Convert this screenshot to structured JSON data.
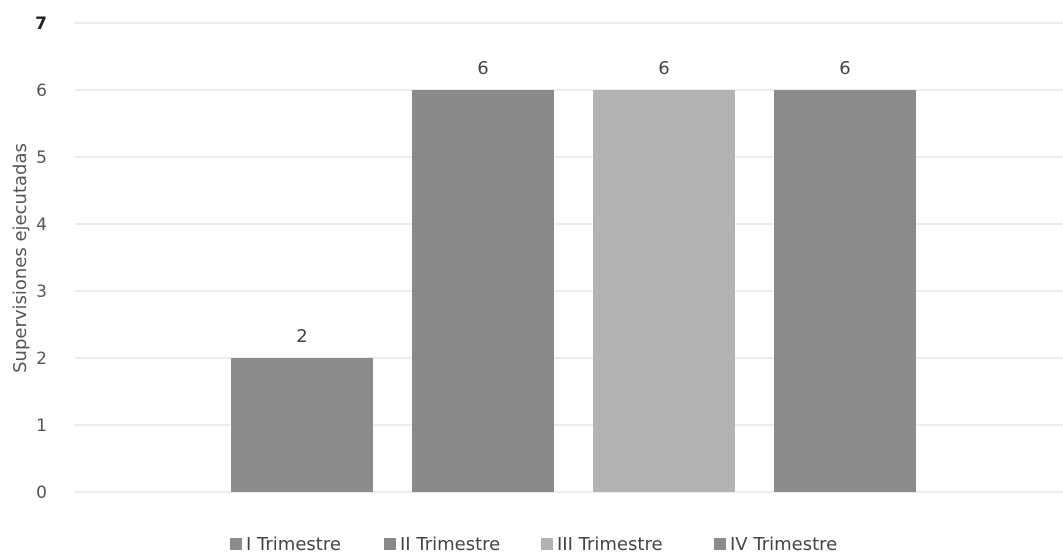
{
  "chart_data": {
    "type": "bar",
    "ylabel": "Supervisiones ejecutadas",
    "ylim": [
      0,
      7
    ],
    "yticks": [
      "0",
      "1",
      "2",
      "3",
      "4",
      "5",
      "6",
      "7"
    ],
    "grid": true,
    "legend_position": "bottom",
    "series": [
      {
        "name": "I Trimestre",
        "values": [
          2
        ],
        "color": "#8c8c8c"
      },
      {
        "name": "II Trimestre",
        "values": [
          6
        ],
        "color": "#8a8a8a"
      },
      {
        "name": "III Trimestre",
        "values": [
          6
        ],
        "color": "#b3b3b3"
      },
      {
        "name": "IV Trimestre",
        "values": [
          6
        ],
        "color": "#8c8c8c"
      }
    ],
    "data_labels": [
      "2",
      "6",
      "6",
      "6"
    ]
  }
}
